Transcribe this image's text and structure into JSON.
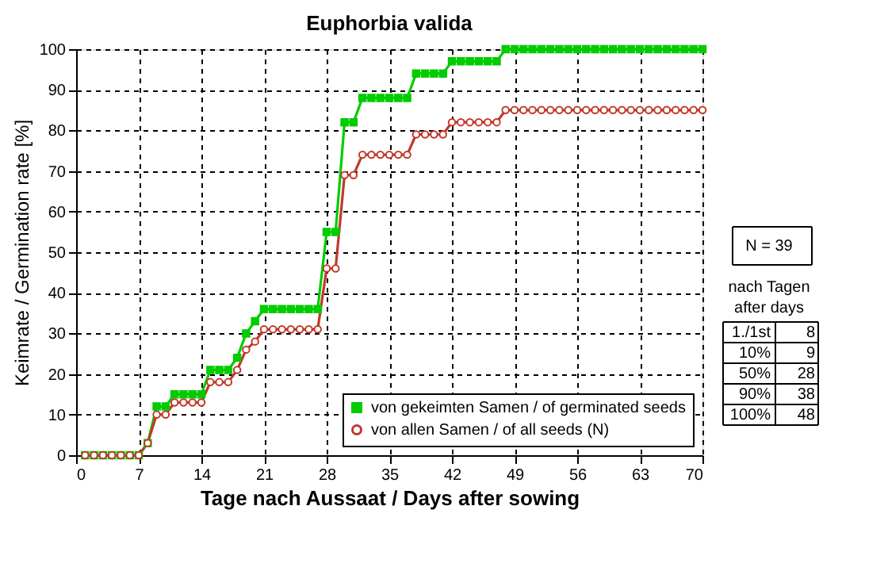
{
  "chart_data": {
    "type": "line",
    "title": "Euphorbia valida",
    "xlabel": "Tage nach Aussaat / Days after sowing",
    "ylabel": "Keimrate / Germination rate [%]",
    "x": [
      1,
      2,
      3,
      4,
      5,
      6,
      7,
      8,
      9,
      10,
      11,
      12,
      13,
      14,
      15,
      16,
      17,
      18,
      19,
      20,
      21,
      22,
      23,
      24,
      25,
      26,
      27,
      28,
      29,
      30,
      31,
      32,
      33,
      34,
      35,
      36,
      37,
      38,
      39,
      40,
      41,
      42,
      43,
      44,
      45,
      46,
      47,
      48,
      49,
      50,
      51,
      52,
      53,
      54,
      55,
      56,
      57,
      58,
      59,
      60,
      61,
      62,
      63,
      64,
      65,
      66,
      67,
      68,
      69,
      70
    ],
    "series": [
      {
        "name": "von gekeimten Samen / of germinated seeds",
        "color": "#00cc00",
        "marker": "square",
        "values": [
          0,
          0,
          0,
          0,
          0,
          0,
          0,
          3,
          12,
          12,
          15,
          15,
          15,
          15,
          21,
          21,
          21,
          24,
          30,
          33,
          36,
          36,
          36,
          36,
          36,
          36,
          36,
          55,
          55,
          82,
          82,
          88,
          88,
          88,
          88,
          88,
          88,
          94,
          94,
          94,
          94,
          97,
          97,
          97,
          97,
          97,
          97,
          100,
          100,
          100,
          100,
          100,
          100,
          100,
          100,
          100,
          100,
          100,
          100,
          100,
          100,
          100,
          100,
          100,
          100,
          100,
          100,
          100,
          100,
          100
        ]
      },
      {
        "name": "von allen Samen / of all seeds (N)",
        "color": "#c0392b",
        "marker": "circle",
        "values": [
          0,
          0,
          0,
          0,
          0,
          0,
          0,
          3,
          10,
          10,
          13,
          13,
          13,
          13,
          18,
          18,
          18,
          21,
          26,
          28,
          31,
          31,
          31,
          31,
          31,
          31,
          31,
          46,
          46,
          69,
          69,
          74,
          74,
          74,
          74,
          74,
          74,
          79,
          79,
          79,
          79,
          82,
          82,
          82,
          82,
          82,
          82,
          85,
          85,
          85,
          85,
          85,
          85,
          85,
          85,
          85,
          85,
          85,
          85,
          85,
          85,
          85,
          85,
          85,
          85,
          85,
          85,
          85,
          85,
          85
        ]
      }
    ],
    "xlim": [
      0,
      70
    ],
    "xticks": [
      0,
      7,
      14,
      21,
      28,
      35,
      42,
      49,
      56,
      63,
      70
    ],
    "ylim": [
      0,
      100
    ],
    "yticks": [
      0,
      10,
      20,
      30,
      40,
      50,
      60,
      70,
      80,
      90,
      100
    ],
    "grid": true,
    "legend": "bottom right",
    "line_style": "solid",
    "annotations": [
      "N = 39",
      "nach Tagen",
      "after days",
      "1./1st",
      "8",
      "10%",
      "9",
      "50%",
      "28",
      "90%",
      "38",
      "100%",
      "48"
    ]
  }
}
